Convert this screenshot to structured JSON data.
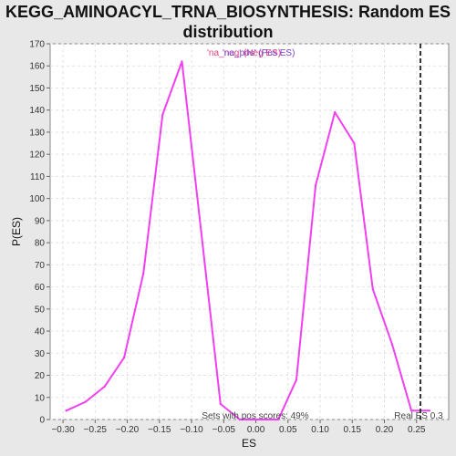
{
  "title_line1": "KEGG_AMINOACYL_TRNA_BIOSYNTHESIS: Random ES",
  "title_line2": "distribution",
  "chart_data": {
    "type": "line",
    "xlabel": "ES",
    "ylabel": "P(ES)",
    "xlim": [
      -0.32,
      0.3
    ],
    "ylim": [
      0,
      170
    ],
    "xticks": [
      -0.3,
      -0.25,
      -0.2,
      -0.15,
      -0.1,
      -0.05,
      0.0,
      0.05,
      0.1,
      0.15,
      0.2,
      0.25
    ],
    "xtick_labels": [
      "−0.30",
      "−0.25",
      "−0.20",
      "−0.15",
      "−0.10",
      "−0.05",
      "0.00",
      "0.05",
      "0.10",
      "0.15",
      "0.20",
      "0.25"
    ],
    "yticks": [
      0,
      10,
      20,
      30,
      40,
      50,
      60,
      70,
      80,
      90,
      100,
      110,
      120,
      130,
      140,
      150,
      160,
      170
    ],
    "grid": true,
    "legend_placement": "top-center",
    "legend": [
      {
        "label": "'na_neg' (Neg ES)",
        "color": "#e0407a"
      },
      {
        "label": "'na_pos' (Pos ES)",
        "color": "#7a40d0"
      }
    ],
    "series": [
      {
        "color": "#f040f0",
        "x": [
          -0.295,
          -0.265,
          -0.235,
          -0.205,
          -0.175,
          -0.145,
          -0.115,
          -0.085,
          -0.055,
          -0.025,
          0.005,
          0.035,
          0.063,
          0.093,
          0.123,
          0.153,
          0.182,
          0.212,
          0.242,
          0.27
        ],
        "y": [
          4,
          8,
          15,
          28,
          66,
          138,
          162,
          85,
          7,
          0,
          0,
          0,
          18,
          106,
          139,
          125,
          59,
          34,
          4,
          4
        ]
      }
    ],
    "real_es": 0.256,
    "real_es_label": "Real ES 0.3",
    "annotation": "Sets with pos scores: 49%"
  }
}
